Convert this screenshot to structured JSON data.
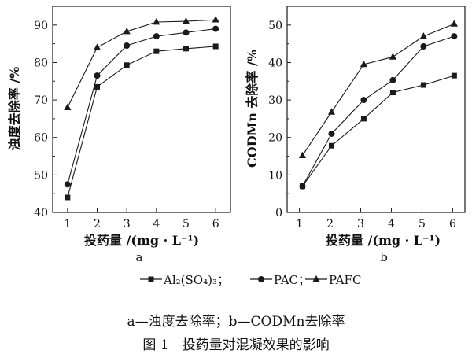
{
  "figure": {
    "legend_text": "Al₂(SO₄)₃；—●—PAC；—▲—PAFC",
    "sub_caption": "a—浊度去除率；b—CODMn去除率",
    "caption": "图 1　投药量对混凝效果的影响",
    "line_color": "#1a1a1a"
  },
  "chart_data": [
    {
      "type": "line",
      "panel_label": "a",
      "xlabel": "投药量 /(mg · L⁻¹)",
      "ylabel": "浊度去除率 /%",
      "xlim": [
        0.5,
        6.5
      ],
      "ylim": [
        40,
        95
      ],
      "xticks": [
        1,
        2,
        3,
        4,
        5,
        6
      ],
      "yticks": [
        40,
        50,
        60,
        70,
        80,
        90
      ],
      "grid": false,
      "x": [
        1,
        2,
        3,
        4,
        5,
        6
      ],
      "series": [
        {
          "name": "Al2(SO4)3",
          "marker": "square",
          "values": [
            44,
            73.5,
            79.3,
            83,
            83.7,
            84.3
          ]
        },
        {
          "name": "PAC",
          "marker": "circle",
          "values": [
            47.5,
            76.5,
            84.5,
            87,
            88,
            89
          ]
        },
        {
          "name": "PAFC",
          "marker": "triangle",
          "values": [
            68,
            84,
            88.3,
            90.8,
            91,
            91.4
          ]
        }
      ]
    },
    {
      "type": "line",
      "panel_label": "b",
      "xlabel": "投药量 /(mg · L⁻¹)",
      "ylabel": "CODMn 去除率 /%",
      "xlim": [
        0.6,
        6.4
      ],
      "ylim": [
        0,
        55
      ],
      "xticks": [
        1,
        2,
        3,
        4,
        5,
        6
      ],
      "yticks": [
        0,
        10,
        20,
        30,
        40,
        50
      ],
      "grid": false,
      "x": [
        1.1,
        2.05,
        3.1,
        4.05,
        5.05,
        6.05
      ],
      "series": [
        {
          "name": "Al2(SO4)3",
          "marker": "square",
          "values": [
            7,
            17.8,
            25,
            32,
            34,
            36.5
          ]
        },
        {
          "name": "PAC",
          "marker": "circle",
          "values": [
            7,
            21,
            30,
            35.3,
            44.3,
            47
          ]
        },
        {
          "name": "PAFC",
          "marker": "triangle",
          "values": [
            15.2,
            26.8,
            39.5,
            41.5,
            47,
            50.3
          ]
        }
      ]
    }
  ]
}
